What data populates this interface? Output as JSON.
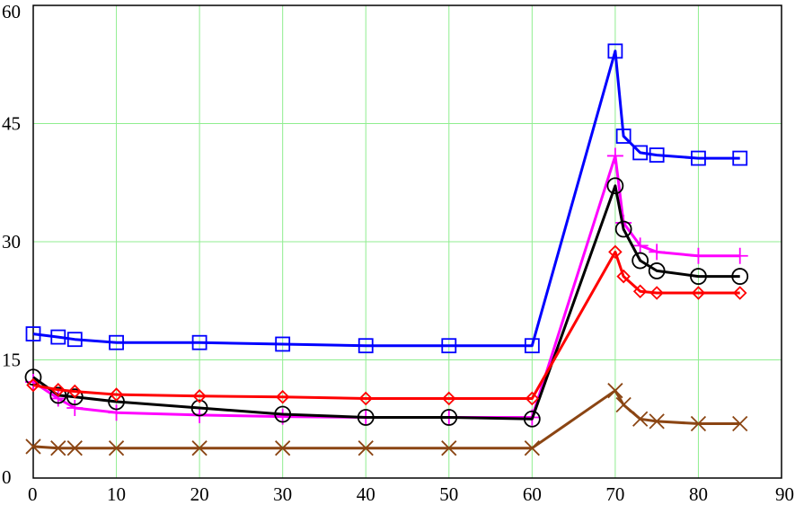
{
  "chart_data": {
    "type": "line",
    "xlim": [
      0,
      90
    ],
    "ylim": [
      0,
      60
    ],
    "xticks": [
      "0",
      "10",
      "20",
      "30",
      "40",
      "50",
      "60",
      "70",
      "80",
      "90"
    ],
    "yticks": [
      "0",
      "15",
      "30",
      "45",
      "60"
    ],
    "grid": true,
    "grid_color": "#90ee90",
    "series": [
      {
        "color": "#0000ff",
        "marker": "square",
        "points": [
          [
            0,
            18.3
          ],
          [
            3,
            17.9
          ],
          [
            5,
            17.6
          ],
          [
            10,
            17.2
          ],
          [
            20,
            17.2
          ],
          [
            30,
            17.0
          ],
          [
            40,
            16.8
          ],
          [
            50,
            16.8
          ],
          [
            60,
            16.8
          ],
          [
            70,
            54.2
          ],
          [
            71,
            43.4
          ],
          [
            73,
            41.3
          ],
          [
            75,
            41.0
          ],
          [
            80,
            40.6
          ],
          [
            85,
            40.6
          ]
        ]
      },
      {
        "color": "#ff00ff",
        "marker": "plus",
        "points": [
          [
            0,
            12.2
          ],
          [
            3,
            10.1
          ],
          [
            5,
            8.9
          ],
          [
            10,
            8.3
          ],
          [
            20,
            8.0
          ],
          [
            30,
            7.8
          ],
          [
            40,
            7.7
          ],
          [
            50,
            7.7
          ],
          [
            60,
            7.7
          ],
          [
            70,
            40.9
          ],
          [
            71,
            32.4
          ],
          [
            73,
            29.5
          ],
          [
            75,
            28.7
          ],
          [
            80,
            28.2
          ],
          [
            85,
            28.2
          ]
        ]
      },
      {
        "color": "#000000",
        "marker": "circle",
        "points": [
          [
            0,
            12.8
          ],
          [
            3,
            10.5
          ],
          [
            5,
            10.3
          ],
          [
            10,
            9.7
          ],
          [
            20,
            8.9
          ],
          [
            30,
            8.1
          ],
          [
            40,
            7.7
          ],
          [
            50,
            7.7
          ],
          [
            60,
            7.5
          ],
          [
            70,
            37.1
          ],
          [
            71,
            31.6
          ],
          [
            73,
            27.6
          ],
          [
            75,
            26.3
          ],
          [
            80,
            25.6
          ],
          [
            85,
            25.6
          ]
        ]
      },
      {
        "color": "#ff0000",
        "marker": "diamond",
        "points": [
          [
            0,
            11.8
          ],
          [
            3,
            11.2
          ],
          [
            5,
            11.0
          ],
          [
            10,
            10.6
          ],
          [
            20,
            10.4
          ],
          [
            30,
            10.3
          ],
          [
            40,
            10.1
          ],
          [
            50,
            10.1
          ],
          [
            60,
            10.1
          ],
          [
            70,
            28.7
          ],
          [
            71,
            25.6
          ],
          [
            73,
            23.7
          ],
          [
            75,
            23.5
          ],
          [
            80,
            23.5
          ],
          [
            85,
            23.5
          ]
        ]
      },
      {
        "color": "#8b4513",
        "marker": "x",
        "points": [
          [
            0,
            4.0
          ],
          [
            3,
            3.8
          ],
          [
            5,
            3.8
          ],
          [
            10,
            3.8
          ],
          [
            20,
            3.8
          ],
          [
            30,
            3.8
          ],
          [
            40,
            3.8
          ],
          [
            50,
            3.8
          ],
          [
            60,
            3.8
          ],
          [
            70,
            11.1
          ],
          [
            71,
            9.3
          ],
          [
            73,
            7.5
          ],
          [
            75,
            7.2
          ],
          [
            80,
            6.9
          ],
          [
            85,
            6.9
          ]
        ]
      }
    ]
  }
}
